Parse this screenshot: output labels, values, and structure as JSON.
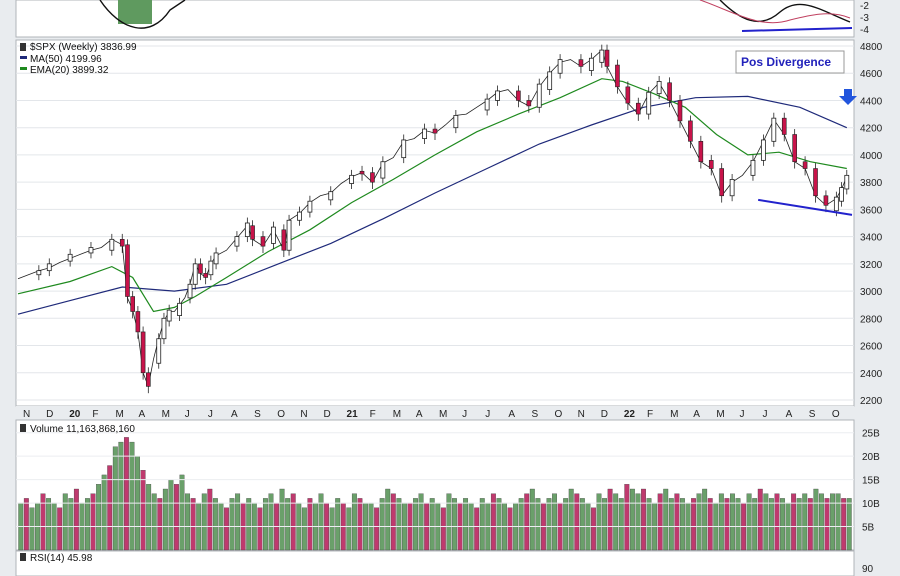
{
  "price_panel": {
    "symbol_line": "$SPX (Weekly) 3836.99",
    "ma_line": "MA(50) 4199.96",
    "ema_line": "EMA(20) 3899.32",
    "annotation": "Pos Divergence",
    "y_ticks": [
      "4800",
      "4600",
      "4400",
      "4200",
      "4000",
      "3800",
      "3600",
      "3400",
      "3200",
      "3000",
      "2800",
      "2600",
      "2400",
      "2200"
    ]
  },
  "x_axis": {
    "labels": [
      {
        "t": "N",
        "bold": false
      },
      {
        "t": "D",
        "bold": false
      },
      {
        "t": "20",
        "bold": true
      },
      {
        "t": "F",
        "bold": false
      },
      {
        "t": "M",
        "bold": false
      },
      {
        "t": "A",
        "bold": false
      },
      {
        "t": "M",
        "bold": false
      },
      {
        "t": "J",
        "bold": false
      },
      {
        "t": "J",
        "bold": false
      },
      {
        "t": "A",
        "bold": false
      },
      {
        "t": "S",
        "bold": false
      },
      {
        "t": "O",
        "bold": false
      },
      {
        "t": "N",
        "bold": false
      },
      {
        "t": "D",
        "bold": false
      },
      {
        "t": "21",
        "bold": true
      },
      {
        "t": "F",
        "bold": false
      },
      {
        "t": "M",
        "bold": false
      },
      {
        "t": "A",
        "bold": false
      },
      {
        "t": "M",
        "bold": false
      },
      {
        "t": "J",
        "bold": false
      },
      {
        "t": "J",
        "bold": false
      },
      {
        "t": "A",
        "bold": false
      },
      {
        "t": "S",
        "bold": false
      },
      {
        "t": "O",
        "bold": false
      },
      {
        "t": "N",
        "bold": false
      },
      {
        "t": "D",
        "bold": false
      },
      {
        "t": "22",
        "bold": true
      },
      {
        "t": "F",
        "bold": false
      },
      {
        "t": "M",
        "bold": false
      },
      {
        "t": "A",
        "bold": false
      },
      {
        "t": "M",
        "bold": false
      },
      {
        "t": "J",
        "bold": false
      },
      {
        "t": "J",
        "bold": false
      },
      {
        "t": "A",
        "bold": false
      },
      {
        "t": "S",
        "bold": false
      },
      {
        "t": "O",
        "bold": false
      }
    ]
  },
  "volume_panel": {
    "label": "Volume 11,163,868,160",
    "y_ticks": [
      "25B",
      "20B",
      "15B",
      "10B",
      "5B"
    ]
  },
  "top_panel": {
    "y_ticks": [
      "-2",
      "-3",
      "-4"
    ]
  },
  "rsi_panel": {
    "label": "RSI(14) 45.98",
    "y_tick": "90"
  },
  "colors": {
    "up": "#5f9a5f",
    "down": "#c8134a",
    "ma50": "#1f2a7a",
    "ema20": "#1f8a1f",
    "divergence": "#2222cc",
    "vol_up": "#6aa06a",
    "vol_down": "#bf3a6e"
  },
  "chart_data": {
    "type": "candlestick",
    "interval": "weekly",
    "x_range": [
      "2019-11",
      "2022-10"
    ],
    "ylim": [
      2150,
      4850
    ],
    "close_path": [
      [
        0,
        3090
      ],
      [
        2,
        3120
      ],
      [
        4,
        3150
      ],
      [
        6,
        3170
      ],
      [
        8,
        3210
      ],
      [
        10,
        3240
      ],
      [
        12,
        3270
      ],
      [
        14,
        3300
      ],
      [
        16,
        3320
      ],
      [
        18,
        3380
      ],
      [
        20,
        3340
      ],
      [
        21,
        2950
      ],
      [
        22,
        2860
      ],
      [
        23,
        2700
      ],
      [
        24,
        2400
      ],
      [
        25,
        2300
      ],
      [
        26,
        2500
      ],
      [
        27,
        2650
      ],
      [
        28,
        2780
      ],
      [
        29,
        2850
      ],
      [
        30,
        2850
      ],
      [
        31,
        2900
      ],
      [
        32,
        2950
      ],
      [
        33,
        3050
      ],
      [
        34,
        3200
      ],
      [
        35,
        3130
      ],
      [
        36,
        3100
      ],
      [
        37,
        3200
      ],
      [
        38,
        3260
      ],
      [
        40,
        3300
      ],
      [
        42,
        3390
      ],
      [
        44,
        3480
      ],
      [
        45,
        3380
      ],
      [
        47,
        3330
      ],
      [
        49,
        3450
      ],
      [
        51,
        3300
      ],
      [
        52,
        3520
      ],
      [
        54,
        3570
      ],
      [
        56,
        3650
      ],
      [
        58,
        3700
      ],
      [
        60,
        3720
      ],
      [
        62,
        3790
      ],
      [
        64,
        3840
      ],
      [
        66,
        3870
      ],
      [
        68,
        3800
      ],
      [
        70,
        3940
      ],
      [
        72,
        3980
      ],
      [
        74,
        4100
      ],
      [
        76,
        4120
      ],
      [
        78,
        4180
      ],
      [
        80,
        4160
      ],
      [
        82,
        4220
      ],
      [
        84,
        4290
      ],
      [
        86,
        4300
      ],
      [
        88,
        4350
      ],
      [
        90,
        4400
      ],
      [
        92,
        4460
      ],
      [
        94,
        4480
      ],
      [
        96,
        4400
      ],
      [
        98,
        4360
      ],
      [
        100,
        4500
      ],
      [
        102,
        4600
      ],
      [
        104,
        4680
      ],
      [
        106,
        4700
      ],
      [
        108,
        4650
      ],
      [
        110,
        4700
      ],
      [
        112,
        4770
      ],
      [
        113,
        4650
      ],
      [
        115,
        4500
      ],
      [
        117,
        4380
      ],
      [
        119,
        4300
      ],
      [
        121,
        4450
      ],
      [
        123,
        4530
      ],
      [
        125,
        4400
      ],
      [
        127,
        4250
      ],
      [
        129,
        4100
      ],
      [
        131,
        3950
      ],
      [
        133,
        3900
      ],
      [
        135,
        3700
      ],
      [
        137,
        3800
      ],
      [
        139,
        3850
      ],
      [
        141,
        3950
      ],
      [
        143,
        4100
      ],
      [
        145,
        4260
      ],
      [
        147,
        4150
      ],
      [
        149,
        3950
      ],
      [
        151,
        3900
      ],
      [
        153,
        3700
      ],
      [
        155,
        3630
      ],
      [
        157,
        3680
      ],
      [
        158,
        3750
      ],
      [
        159,
        3840
      ]
    ],
    "candles_up": [
      [
        4,
        3120,
        3150
      ],
      [
        6,
        3150,
        3200
      ],
      [
        10,
        3220,
        3270
      ],
      [
        14,
        3280,
        3320
      ],
      [
        18,
        3300,
        3380
      ],
      [
        27,
        2470,
        2650
      ],
      [
        28,
        2650,
        2800
      ],
      [
        29,
        2780,
        2860
      ],
      [
        31,
        2820,
        2910
      ],
      [
        33,
        2950,
        3050
      ],
      [
        34,
        3050,
        3200
      ],
      [
        37,
        3120,
        3220
      ],
      [
        38,
        3200,
        3280
      ],
      [
        42,
        3330,
        3400
      ],
      [
        44,
        3400,
        3500
      ],
      [
        49,
        3350,
        3470
      ],
      [
        52,
        3300,
        3520
      ],
      [
        54,
        3520,
        3580
      ],
      [
        56,
        3580,
        3660
      ],
      [
        60,
        3670,
        3730
      ],
      [
        64,
        3790,
        3850
      ],
      [
        70,
        3830,
        3950
      ],
      [
        74,
        3980,
        4110
      ],
      [
        78,
        4120,
        4190
      ],
      [
        84,
        4200,
        4290
      ],
      [
        90,
        4330,
        4410
      ],
      [
        92,
        4400,
        4470
      ],
      [
        100,
        4350,
        4520
      ],
      [
        102,
        4480,
        4610
      ],
      [
        104,
        4600,
        4700
      ],
      [
        110,
        4620,
        4710
      ],
      [
        112,
        4680,
        4770
      ],
      [
        121,
        4300,
        4460
      ],
      [
        123,
        4450,
        4540
      ],
      [
        137,
        3700,
        3820
      ],
      [
        141,
        3850,
        3960
      ],
      [
        143,
        3960,
        4110
      ],
      [
        145,
        4100,
        4270
      ],
      [
        157,
        3590,
        3690
      ],
      [
        158,
        3660,
        3760
      ],
      [
        159,
        3750,
        3850
      ]
    ],
    "candles_down": [
      [
        20,
        3380,
        3330
      ],
      [
        21,
        3340,
        2960
      ],
      [
        22,
        2960,
        2850
      ],
      [
        23,
        2850,
        2700
      ],
      [
        24,
        2700,
        2400
      ],
      [
        25,
        2400,
        2300
      ],
      [
        35,
        3200,
        3130
      ],
      [
        36,
        3130,
        3100
      ],
      [
        45,
        3480,
        3380
      ],
      [
        47,
        3400,
        3330
      ],
      [
        51,
        3450,
        3300
      ],
      [
        66,
        3880,
        3860
      ],
      [
        68,
        3870,
        3800
      ],
      [
        80,
        4190,
        4160
      ],
      [
        96,
        4470,
        4400
      ],
      [
        98,
        4400,
        4360
      ],
      [
        108,
        4700,
        4650
      ],
      [
        113,
        4770,
        4650
      ],
      [
        115,
        4660,
        4500
      ],
      [
        117,
        4500,
        4380
      ],
      [
        119,
        4380,
        4300
      ],
      [
        125,
        4530,
        4400
      ],
      [
        127,
        4400,
        4250
      ],
      [
        129,
        4250,
        4100
      ],
      [
        131,
        4100,
        3950
      ],
      [
        133,
        3960,
        3900
      ],
      [
        135,
        3900,
        3700
      ],
      [
        147,
        4270,
        4150
      ],
      [
        149,
        4150,
        3950
      ],
      [
        151,
        3950,
        3900
      ],
      [
        153,
        3900,
        3700
      ],
      [
        155,
        3700,
        3630
      ]
    ],
    "ma50": [
      [
        0,
        2830
      ],
      [
        10,
        2930
      ],
      [
        20,
        3030
      ],
      [
        30,
        3000
      ],
      [
        40,
        3050
      ],
      [
        50,
        3200
      ],
      [
        60,
        3350
      ],
      [
        70,
        3530
      ],
      [
        80,
        3720
      ],
      [
        90,
        3900
      ],
      [
        100,
        4080
      ],
      [
        110,
        4220
      ],
      [
        120,
        4350
      ],
      [
        130,
        4420
      ],
      [
        140,
        4430
      ],
      [
        150,
        4350
      ],
      [
        159,
        4200
      ]
    ],
    "ema20": [
      [
        0,
        2980
      ],
      [
        10,
        3070
      ],
      [
        18,
        3180
      ],
      [
        22,
        3100
      ],
      [
        26,
        2850
      ],
      [
        30,
        2880
      ],
      [
        34,
        2960
      ],
      [
        40,
        3100
      ],
      [
        48,
        3290
      ],
      [
        56,
        3450
      ],
      [
        64,
        3650
      ],
      [
        72,
        3820
      ],
      [
        80,
        4000
      ],
      [
        88,
        4170
      ],
      [
        96,
        4300
      ],
      [
        104,
        4420
      ],
      [
        112,
        4560
      ],
      [
        116,
        4540
      ],
      [
        122,
        4450
      ],
      [
        128,
        4350
      ],
      [
        134,
        4150
      ],
      [
        140,
        4000
      ],
      [
        146,
        4020
      ],
      [
        152,
        3950
      ],
      [
        159,
        3900
      ]
    ],
    "divergence_line": [
      [
        142,
        3670
      ],
      [
        160,
        3560
      ]
    ],
    "volume_B": [
      10,
      11,
      9,
      10,
      12,
      11,
      10,
      9,
      12,
      11,
      13,
      10,
      11,
      12,
      14,
      16,
      18,
      22,
      23,
      24,
      23,
      20,
      17,
      14,
      12,
      11,
      13,
      15,
      14,
      16,
      12,
      11,
      10,
      12,
      13,
      11,
      10,
      9,
      11,
      12,
      10,
      11,
      10,
      9,
      11,
      12,
      10,
      13,
      11,
      12,
      10,
      9,
      11,
      10,
      12,
      10,
      9,
      11,
      10,
      9,
      12,
      11,
      10,
      10,
      9,
      11,
      13,
      12,
      11,
      10,
      10,
      11,
      12,
      10,
      11,
      10,
      9,
      12,
      11,
      10,
      11,
      10,
      9,
      11,
      10,
      12,
      11,
      10,
      9,
      10,
      11,
      12,
      13,
      11,
      10,
      11,
      12,
      10,
      11,
      13,
      12,
      11,
      10,
      9,
      12,
      11,
      13,
      12,
      11,
      14,
      13,
      12,
      13,
      11,
      10,
      12,
      13,
      11,
      12,
      11,
      10,
      11,
      12,
      13,
      11,
      10,
      12,
      11,
      12,
      11,
      10,
      12,
      11,
      13,
      12,
      11,
      12,
      11,
      10,
      12,
      11,
      12,
      11,
      13,
      12,
      11,
      12,
      12,
      11,
      11
    ],
    "top_panel_ylim": [
      -4.3,
      -1.5
    ],
    "rsi_label": "RSI(14) 45.98"
  }
}
